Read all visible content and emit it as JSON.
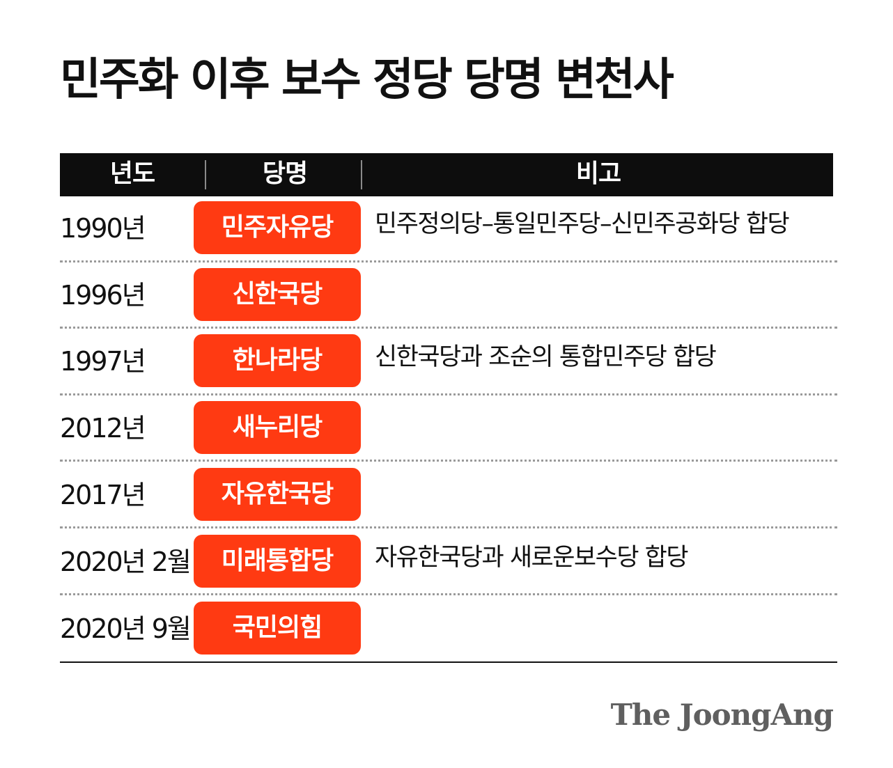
{
  "title": "민주화 이후 보수 정당 당명 변천사",
  "headers": {
    "year": "년도",
    "party": "당명",
    "note": "비고"
  },
  "rows": [
    {
      "year": "1990년",
      "party": "민주자유당",
      "note": "민주정의당–통일민주당–신민주공화당 합당"
    },
    {
      "year": "1996년",
      "party": "신한국당",
      "note": ""
    },
    {
      "year": "1997년",
      "party": "한나라당",
      "note": "신한국당과 조순의 통합민주당 합당"
    },
    {
      "year": "2012년",
      "party": "새누리당",
      "note": ""
    },
    {
      "year": "2017년",
      "party": "자유한국당",
      "note": ""
    },
    {
      "year": "2020년 2월",
      "party": "미래통합당",
      "note": "자유한국당과 새로운보수당 합당"
    },
    {
      "year": "2020년 9월",
      "party": "국민의힘",
      "note": ""
    }
  ],
  "source_logo": "The JoongAng",
  "colors": {
    "accent": "#ff3a12",
    "header_bg": "#0d0d0d",
    "text": "#111111",
    "logo": "#5f5f5f"
  }
}
